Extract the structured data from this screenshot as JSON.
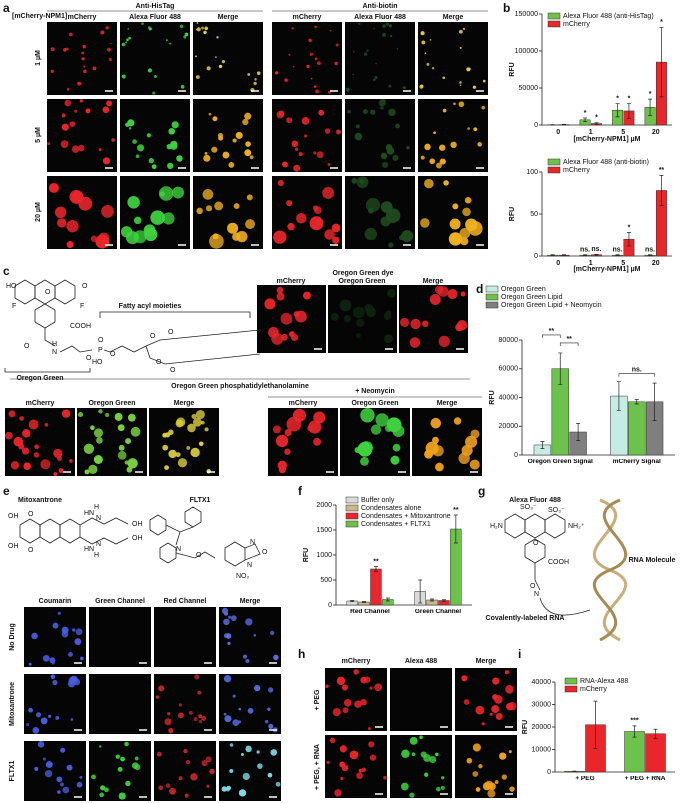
{
  "panel_labels": [
    "a",
    "b",
    "c",
    "d",
    "e",
    "f",
    "g",
    "h",
    "i"
  ],
  "panel_a": {
    "row_header": "[mCherry-NPM1]",
    "groups": [
      "Anti-HisTag",
      "Anti-biotin"
    ],
    "columns": [
      "mCherry",
      "Alexa Fluor 488",
      "Merge"
    ],
    "rows": [
      "1 µM",
      "5 µM",
      "20 µM"
    ]
  },
  "panel_c": {
    "structure_atoms": [
      "HO",
      "O",
      "O",
      "F",
      "F",
      "COOH",
      "O",
      "H",
      "N",
      "O",
      "P",
      "HO",
      "O",
      "O",
      "O",
      "O",
      "O",
      "O"
    ],
    "moieties": "Fatty acyl moieties",
    "dye_name": "Oregon Green",
    "top_title": "Oregon Green dye",
    "bottom_title": "Oregon Green phosphatidylethanolamine",
    "neomycin": "+ Neomycin",
    "columns": [
      "mCherry",
      "Oregon Green",
      "Merge"
    ]
  },
  "panel_e": {
    "compounds": [
      "Mitoxantrone",
      "FLTX1"
    ],
    "mitoxantrone_atoms": [
      "OH",
      "O",
      "OH",
      "O",
      "HN",
      "H",
      "N",
      "OH",
      "HN",
      "H",
      "N",
      "OH"
    ],
    "fltx1_atoms": [
      "O",
      "N",
      "N",
      "O",
      "N",
      "NO₂"
    ],
    "columns": [
      "Coumarin",
      "Green Channel",
      "Red Channel",
      "Merge"
    ],
    "rows": [
      "No Drug",
      "Mitoxantrone",
      "FLTX1"
    ]
  },
  "panel_g": {
    "dye": "Alexa Fluor 488",
    "atoms": [
      "SO₃⁻",
      "SO₃⁻",
      "H₂N",
      "O",
      "NH₂⁺",
      "COOH",
      "O",
      "N"
    ],
    "rna": "RNA Molecule",
    "label": "Covalently-labeled RNA"
  },
  "panel_h": {
    "columns": [
      "mCherry",
      "Alexa 488",
      "Merge"
    ],
    "rows": [
      "+ PEG",
      "+ PEG, + RNA"
    ]
  },
  "chart_data": [
    {
      "type": "bar",
      "xlabel": "[mCherry-NPM1] µM",
      "ylabel": "RFU",
      "categories": [
        "0",
        "1",
        "5",
        "20"
      ],
      "series": [
        {
          "name": "Alexa Fluor 488 (anti-HisTag)",
          "color": "#6cc24a",
          "values": [
            300,
            7000,
            20000,
            24000
          ],
          "errors": [
            200,
            2500,
            9000,
            11000
          ],
          "significance": [
            null,
            "*",
            "*",
            "*"
          ]
        },
        {
          "name": "mCherry",
          "color": "#e8262b",
          "values": [
            500,
            2000,
            19000,
            85000
          ],
          "errors": [
            300,
            1000,
            10000,
            47000
          ],
          "significance": [
            null,
            "*",
            "*",
            "*"
          ]
        }
      ],
      "ylim": [
        0,
        150000
      ],
      "yticks": [
        0,
        50000,
        100000,
        150000
      ]
    },
    {
      "type": "bar",
      "xlabel": "[mCherry-NPM1] µM",
      "ylabel": "RFU",
      "categories": [
        "0",
        "1",
        "5",
        "20"
      ],
      "series": [
        {
          "name": "Alexa Fluor 488 (anti-biotin)",
          "color": "#6cc24a",
          "values": [
            1,
            1,
            1,
            1
          ],
          "errors": [
            0.5,
            0.5,
            0.5,
            0.5
          ],
          "significance": [
            null,
            "ns.",
            "ns.",
            "ns."
          ]
        },
        {
          "name": "mCherry",
          "color": "#e8262b",
          "values": [
            1,
            1.5,
            20,
            78
          ],
          "errors": [
            0.5,
            0.5,
            8,
            18
          ],
          "significance": [
            null,
            "ns.",
            "*",
            "**"
          ]
        }
      ],
      "ylim": [
        0,
        100
      ],
      "yticks": [
        0,
        50,
        100
      ]
    },
    {
      "type": "bar",
      "ylabel": "RFU",
      "categories": [
        "Oregon Green Signal",
        "mCherry Signal"
      ],
      "series": [
        {
          "name": "Oregon Green",
          "color": "#c5ebe3",
          "values": [
            7000,
            41000
          ],
          "errors": [
            2500,
            10000
          ]
        },
        {
          "name": "Oregon Green Lipid",
          "color": "#6cc24a",
          "values": [
            60000,
            37000
          ],
          "errors": [
            11000,
            1500
          ]
        },
        {
          "name": "Oregon Green Lipid + Neomycin",
          "color": "#7f7f7f",
          "values": [
            16000,
            37000
          ],
          "errors": [
            6000,
            13000
          ]
        }
      ],
      "comparisons": [
        "**",
        "**",
        "ns."
      ],
      "ylim": [
        0,
        80000
      ],
      "yticks": [
        0,
        20000,
        40000,
        60000,
        80000
      ]
    },
    {
      "type": "bar",
      "ylabel": "RFU",
      "categories": [
        "Red Channel",
        "Green Channel"
      ],
      "series": [
        {
          "name": "Buffer only",
          "color": "#d9d9d9",
          "values": [
            80,
            270
          ],
          "errors": [
            10,
            230
          ]
        },
        {
          "name": "Condensates alone",
          "color": "#c8b88a",
          "values": [
            60,
            100
          ],
          "errors": [
            10,
            20
          ]
        },
        {
          "name": "Condensates + Mitoxantrone",
          "color": "#e8262b",
          "values": [
            720,
            90
          ],
          "errors": [
            50,
            15
          ],
          "significance": [
            "**",
            null
          ]
        },
        {
          "name": "Condensates + FLTX1",
          "color": "#6cc24a",
          "values": [
            110,
            1520
          ],
          "errors": [
            30,
            280
          ],
          "significance": [
            null,
            "**"
          ]
        }
      ],
      "ylim": [
        0,
        2000
      ],
      "yticks": [
        0,
        500,
        1000,
        1500,
        2000
      ]
    },
    {
      "type": "bar",
      "ylabel": "RFU",
      "categories": [
        "+ PEG",
        "+ PEG + RNA"
      ],
      "series": [
        {
          "name": "RNA-Alexa 488",
          "color": "#6cc24a",
          "values": [
            300,
            18000
          ],
          "errors": [
            100,
            2500
          ],
          "significance": [
            null,
            "***"
          ]
        },
        {
          "name": "mCherry",
          "color": "#e8262b",
          "values": [
            21000,
            17000
          ],
          "errors": [
            10500,
            2000
          ]
        }
      ],
      "ylim": [
        0,
        40000
      ],
      "yticks": [
        0,
        10000,
        20000,
        30000,
        40000
      ]
    }
  ]
}
